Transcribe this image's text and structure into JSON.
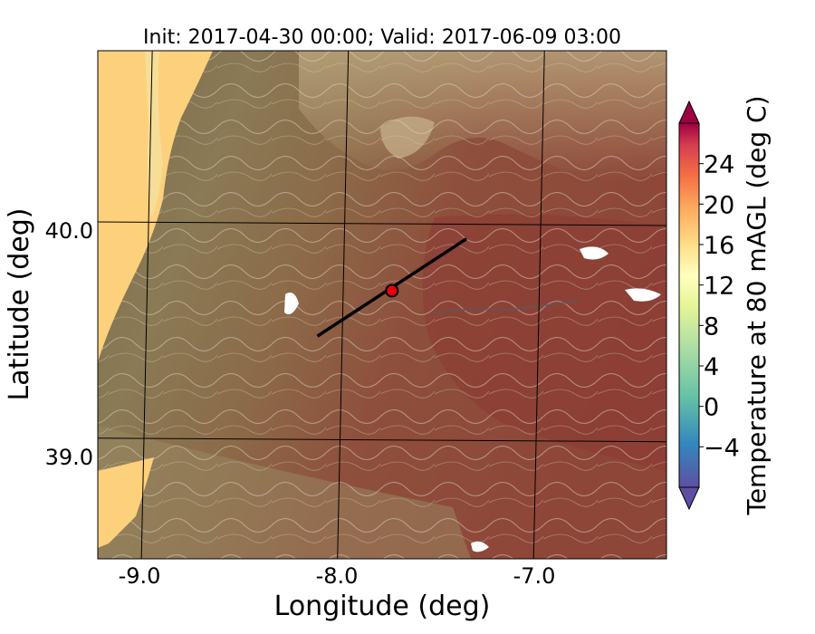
{
  "title": "Init: 2017-04-30 00:00; Valid: 2017-06-09 03:00",
  "xlabel": "Longitude (deg)",
  "ylabel": "Latitude (deg)",
  "x_ticks": [
    "-9.0",
    "-8.0",
    "-7.0"
  ],
  "y_ticks": [
    "40.0",
    "39.0"
  ],
  "colorbar": {
    "label": "Temperature at 80 mAGL (deg C)",
    "ticks": [
      "24",
      "20",
      "16",
      "12",
      "8",
      "4",
      "0",
      "−4"
    ],
    "range": [
      -8,
      28
    ]
  },
  "map": {
    "lon_range": [
      -9.25,
      -6.35
    ],
    "lat_range": [
      38.45,
      40.8
    ],
    "gridlines": true,
    "cross_section_line": {
      "start": [
        -8.13,
        39.48
      ],
      "end": [
        -7.37,
        39.93
      ]
    },
    "marker": {
      "lon": -7.75,
      "lat": 39.69,
      "color": "#e8000b"
    }
  }
}
